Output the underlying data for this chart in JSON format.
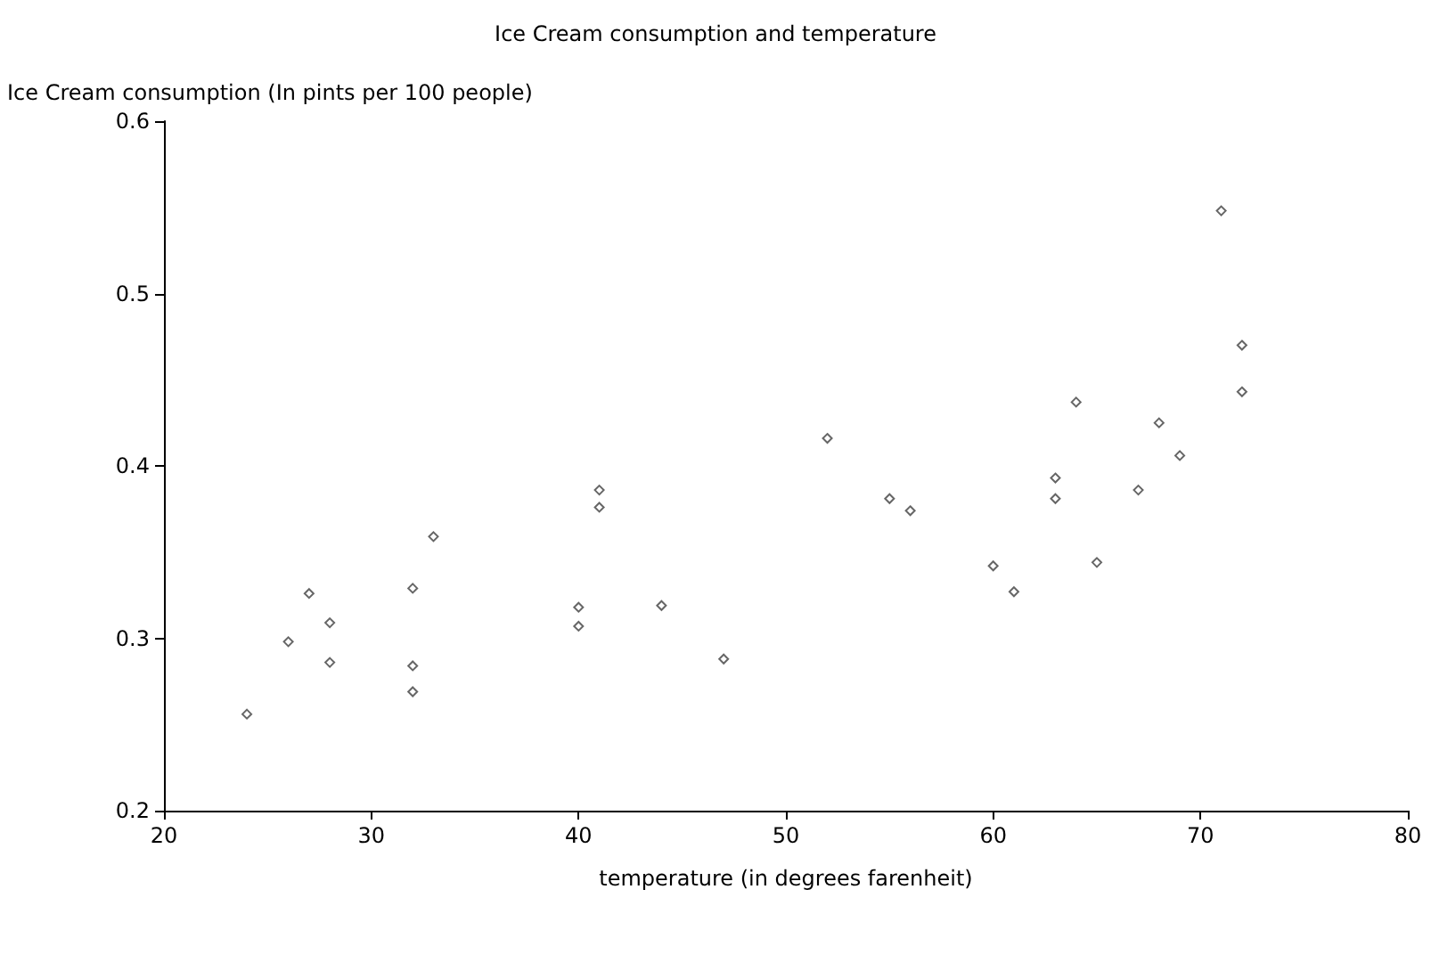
{
  "chart_data": {
    "type": "scatter",
    "title": "Ice Cream consumption and temperature",
    "xlabel": "temperature (in degrees farenheit)",
    "ylabel": "Ice Cream consumption (In pints per 100 people)",
    "x": [
      41,
      56,
      63,
      68,
      69,
      65,
      61,
      47,
      32,
      24,
      28,
      26,
      32,
      40,
      55,
      63,
      72,
      72,
      67,
      60,
      44,
      40,
      32,
      27,
      28,
      33,
      41,
      52,
      64,
      71
    ],
    "values": [
      0.386,
      0.374,
      0.393,
      0.425,
      0.406,
      0.344,
      0.327,
      0.288,
      0.269,
      0.256,
      0.286,
      0.298,
      0.329,
      0.318,
      0.381,
      0.381,
      0.47,
      0.443,
      0.386,
      0.342,
      0.319,
      0.307,
      0.284,
      0.326,
      0.309,
      0.359,
      0.376,
      0.416,
      0.437,
      0.548
    ],
    "color": "#404040",
    "marker": "diamond",
    "grid": false,
    "xlim": [
      20,
      80
    ],
    "xticks": [
      20,
      30,
      40,
      50,
      60,
      70,
      80
    ],
    "ylim": [
      0.2,
      0.6
    ],
    "yticks": [
      0.2,
      0.3,
      0.4,
      0.5,
      0.6
    ]
  }
}
